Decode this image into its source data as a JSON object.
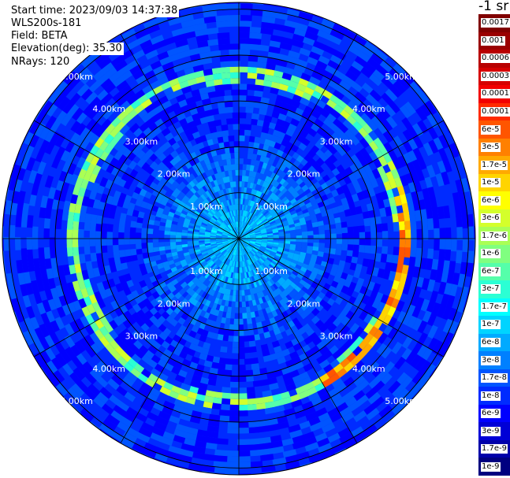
{
  "header": {
    "start_time": "Start time: 2023/09/03 14:37:38",
    "instrument": "WLS200s-181",
    "field": "Field: BETA",
    "elevation": "Elevation(deg): 35.30",
    "nrays": "NRays: 120"
  },
  "colorbar": {
    "unit_label": "-1 sr",
    "ticks": [
      "0.0017",
      "0.001",
      "0.0006",
      "0.0003",
      "0.00017",
      "0.0001",
      "6e-5",
      "3e-5",
      "1.7e-5",
      "1e-5",
      "6e-6",
      "3e-6",
      "1.7e-6",
      "1e-6",
      "6e-7",
      "3e-7",
      "1.7e-7",
      "1e-7",
      "6e-8",
      "3e-8",
      "1.7e-8",
      "1e-8",
      "6e-9",
      "3e-9",
      "1.7e-9",
      "1e-9"
    ],
    "colors": [
      "#800000",
      "#9a0000",
      "#b80000",
      "#d60000",
      "#f20000",
      "#ff2a00",
      "#ff5500",
      "#ff8000",
      "#ffaa00",
      "#ffd400",
      "#ffff00",
      "#d4ff2b",
      "#aaff55",
      "#80ff80",
      "#55ffaa",
      "#2bffd4",
      "#00ffff",
      "#00d4ff",
      "#00aaff",
      "#0080ff",
      "#0055ff",
      "#002bff",
      "#0000ff",
      "#0000d6",
      "#0000aa",
      "#000080"
    ]
  },
  "chart_data": {
    "type": "heatmap",
    "projection": "polar PPI scan",
    "field": "BETA",
    "elevation_deg": 35.3,
    "n_rays": 120,
    "range_rings_km": [
      1.0,
      2.0,
      3.0,
      4.0,
      5.0
    ],
    "ring_labels": [
      "1.00km",
      "2.00km",
      "3.00km",
      "4.00km",
      "5.00km"
    ],
    "azimuth_spokes_deg": [
      0,
      30,
      60,
      90,
      120,
      150,
      180,
      210,
      240,
      270,
      300,
      330
    ],
    "background_level": "1e-8",
    "inner_level": "1e-7",
    "features": [
      {
        "description": "cloud ring",
        "range_km": 3.6,
        "level": "1e-6"
      },
      {
        "description": "strong returns east-southeast arc",
        "range_km": 3.65,
        "level": "3e-5"
      }
    ]
  }
}
